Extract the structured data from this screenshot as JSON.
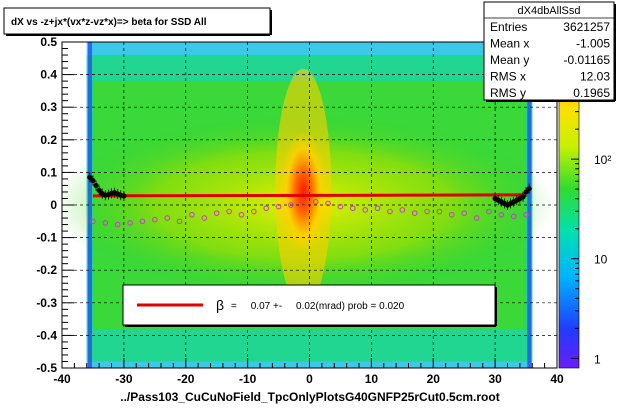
{
  "chart_data": {
    "type": "heatmap",
    "title": "dX vs  -z+jx*(vx*z-vz*x)=> beta  for SSD All",
    "xlabel": "../Pass103_CuCuNoField_TpcOnlyPlotsG40GNFP25rCut0.5cm.root",
    "ylabel": "",
    "xlim": [
      -40,
      40
    ],
    "ylim": [
      -0.5,
      0.5
    ],
    "x_ticks": [
      "-40",
      "-30",
      "-20",
      "-10",
      "0",
      "10",
      "20",
      "30",
      "40"
    ],
    "y_ticks": [
      "-0.5",
      "-0.4",
      "-0.3",
      "-0.2",
      "-0.1",
      "0",
      "0.1",
      "0.2",
      "0.3",
      "0.4",
      "0.5"
    ],
    "grid": true,
    "colorscale": {
      "scale": "log",
      "ticks": [
        "1",
        "10",
        "10²"
      ],
      "tick_values": [
        1,
        10,
        100
      ],
      "range": [
        0.8,
        1500
      ]
    },
    "stats": {
      "name": "dX4dbAllSsd",
      "rows": [
        {
          "label": "Entries",
          "value": "3621257"
        },
        {
          "label": "Mean x",
          "value": "-1.005"
        },
        {
          "label": "Mean y",
          "value": "-0.01165"
        },
        {
          "label": "RMS x",
          "value": "12.03"
        },
        {
          "label": "RMS y",
          "value": "0.1965"
        }
      ]
    },
    "legend": {
      "symbol": "β",
      "text": "=     0.07 +-     0.02(mrad) prob = 0.020",
      "placement": "bottom-center"
    },
    "fit_line": {
      "x": [
        -35,
        35
      ],
      "y": [
        0.028,
        0.031
      ],
      "color": "#e00000"
    },
    "series": [
      {
        "marker": "filled-circle",
        "color": "#000000",
        "x": [
          -35.5,
          -35,
          -34.5,
          -34,
          -33.5,
          -33,
          -32.5,
          -32,
          -31.5,
          -31,
          -30.5,
          -30,
          30,
          30.5,
          31,
          31.5,
          32,
          32.5,
          33,
          33.5,
          34,
          34.5,
          35,
          35.5
        ],
        "y": [
          0.085,
          0.075,
          0.06,
          0.045,
          0.035,
          0.03,
          0.032,
          0.036,
          0.038,
          0.034,
          0.03,
          0.028,
          0.02,
          0.015,
          0.01,
          0.005,
          0.0,
          0.005,
          0.01,
          0.015,
          0.02,
          0.025,
          0.04,
          0.05
        ]
      },
      {
        "marker": "open-circle",
        "color": "#c040c0",
        "x": [
          -35,
          -33,
          -31,
          -29,
          -27,
          -25,
          -23,
          -21,
          -19,
          -17,
          -15,
          -13,
          -11,
          -9,
          -7,
          -5,
          -3,
          -1,
          1,
          3,
          5,
          7,
          9,
          11,
          13,
          15,
          17,
          19,
          21,
          23,
          25,
          27,
          29,
          31,
          33,
          35
        ],
        "y": [
          -0.05,
          -0.055,
          -0.06,
          -0.055,
          -0.05,
          -0.045,
          -0.04,
          -0.05,
          -0.03,
          -0.04,
          -0.025,
          -0.02,
          -0.03,
          -0.02,
          -0.01,
          -0.005,
          0.0,
          0.005,
          0.01,
          0.005,
          -0.005,
          -0.01,
          -0.015,
          -0.01,
          -0.02,
          -0.015,
          -0.025,
          -0.02,
          -0.02,
          -0.03,
          -0.025,
          -0.04,
          -0.02,
          -0.03,
          -0.035,
          -0.03
        ]
      }
    ]
  }
}
